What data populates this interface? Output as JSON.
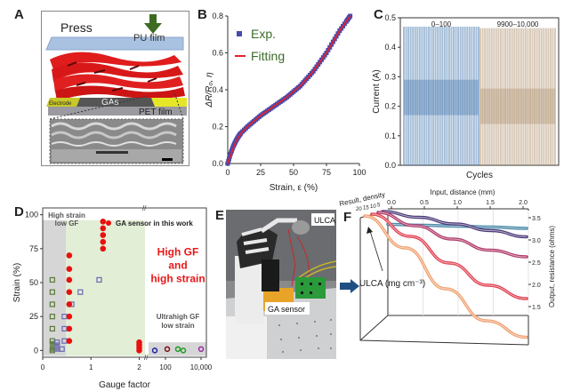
{
  "figure": {
    "panels": {
      "A": {
        "letter": "A",
        "labels": {
          "press": "Press",
          "pu_film": "PU film",
          "electrode": "Electrode",
          "gas": "GAs",
          "pet_film": "PET film"
        }
      },
      "B": {
        "letter": "B"
      },
      "C": {
        "letter": "C"
      },
      "D": {
        "letter": "D"
      },
      "E": {
        "letter": "E",
        "labels": {
          "ulca": "ULCA",
          "ga_sensor": "GA sensor"
        }
      },
      "F": {
        "letter": "F"
      }
    },
    "colors": {
      "exp_marker": "#4a4aa8",
      "fitting_line": "#e8202a",
      "legend_text": "#3d6b2a",
      "cycle_blue": "#3a6fa8",
      "cycle_brown": "#a88a64",
      "ga_red": "#e81010",
      "high_gf_text": "#e81818",
      "green_region": "#e2eed6",
      "gray_region": "#d6d6d6",
      "arrow": "#1f4f82",
      "press_arrow": "#3d6b22"
    }
  },
  "chart_data": [
    {
      "panel": "B",
      "type": "line",
      "title": "",
      "xlabel": "Strain, ε (%)",
      "ylabel": "ΔR/R₀, η",
      "xlim": [
        0,
        100
      ],
      "ylim": [
        0,
        0.8
      ],
      "xticks": [
        "0",
        "25",
        "50",
        "75",
        "100"
      ],
      "yticks": [
        "0.0",
        "0.2",
        "0.4",
        "0.6",
        "0.8"
      ],
      "legend": [
        "Exp.",
        "Fitting"
      ],
      "legend_position": "top-left",
      "series": [
        {
          "name": "Exp.",
          "style": "markers",
          "x": [
            0,
            2,
            4,
            6,
            8,
            10,
            15,
            20,
            25,
            30,
            35,
            40,
            45,
            50,
            55,
            60,
            65,
            70,
            75,
            80,
            85,
            90,
            93
          ],
          "y": [
            0.0,
            0.05,
            0.09,
            0.12,
            0.145,
            0.165,
            0.2,
            0.23,
            0.26,
            0.285,
            0.31,
            0.335,
            0.36,
            0.39,
            0.42,
            0.46,
            0.5,
            0.55,
            0.6,
            0.66,
            0.72,
            0.77,
            0.8
          ]
        },
        {
          "name": "Fitting",
          "style": "line",
          "x": [
            0,
            2,
            4,
            6,
            8,
            10,
            15,
            20,
            25,
            30,
            35,
            40,
            45,
            50,
            55,
            60,
            65,
            70,
            75,
            80,
            85,
            90,
            93
          ],
          "y": [
            0.0,
            0.04,
            0.08,
            0.115,
            0.14,
            0.162,
            0.2,
            0.23,
            0.26,
            0.285,
            0.31,
            0.335,
            0.36,
            0.39,
            0.42,
            0.46,
            0.5,
            0.55,
            0.6,
            0.66,
            0.72,
            0.77,
            0.8
          ]
        }
      ]
    },
    {
      "panel": "C",
      "type": "line",
      "title": "",
      "xlabel": "Cycles",
      "ylabel": "Current (A)",
      "ylim": [
        0,
        0.5
      ],
      "yticks": [
        "0.0",
        "0.1",
        "0.2",
        "0.3",
        "0.4",
        "0.5"
      ],
      "series": [
        {
          "name": "0–100",
          "min": 0.0,
          "max": 0.47,
          "center": 0.23
        },
        {
          "name": "9900–10,000",
          "min": 0.0,
          "max": 0.465,
          "center": 0.2
        }
      ]
    },
    {
      "panel": "D",
      "type": "scatter",
      "title": "",
      "xlabel": "Gauge factor",
      "ylabel": "Strain (%)",
      "xticks": [
        "0",
        "1",
        "2",
        "100",
        "10,000"
      ],
      "yticks": [
        "0",
        "25",
        "50",
        "75",
        "100"
      ],
      "ylim": [
        -5,
        105
      ],
      "legend": [
        "GA sensor in this work"
      ],
      "legend_position": "top-right",
      "annotations": [
        "High strain\nlow GF",
        "High GF\nand\nhigh strain",
        "Ultrahigh GF\nlow strain"
      ],
      "series": [
        {
          "name": "GA sensor in this work",
          "marker": "filled-circle",
          "points": [
            [
              0.55,
              7
            ],
            [
              0.55,
              16
            ],
            [
              0.55,
              25
            ],
            [
              0.55,
              34
            ],
            [
              0.55,
              43
            ],
            [
              0.55,
              52
            ],
            [
              0.55,
              60
            ],
            [
              0.55,
              70
            ],
            [
              1.25,
              75
            ],
            [
              1.25,
              80
            ],
            [
              1.25,
              85
            ],
            [
              1.25,
              90
            ],
            [
              1.25,
              95
            ],
            [
              2.0,
              0
            ],
            [
              2.0,
              2
            ],
            [
              2.0,
              4
            ],
            [
              2.0,
              6
            ]
          ]
        },
        {
          "name": "green-squares",
          "marker": "open-square",
          "points": [
            [
              0.2,
              7
            ],
            [
              0.2,
              16
            ],
            [
              0.2,
              25
            ],
            [
              0.2,
              34
            ],
            [
              0.2,
              43
            ],
            [
              0.2,
              52
            ],
            [
              0.2,
              0
            ]
          ]
        },
        {
          "name": "blue-squares",
          "marker": "open-square",
          "points": [
            [
              0.3,
              6
            ],
            [
              0.4,
              1
            ],
            [
              0.45,
              7
            ],
            [
              0.45,
              16
            ],
            [
              0.45,
              25
            ],
            [
              0.6,
              34
            ],
            [
              0.78,
              43
            ],
            [
              1.17,
              52
            ]
          ]
        },
        {
          "name": "ultrahigh",
          "marker": "open-circle",
          "points": [
            [
              "~30",
              0,
              "#1f1fa0"
            ],
            [
              "~50",
              1,
              "#7a1010"
            ],
            [
              "~80",
              1,
              "#1f9a1f"
            ],
            [
              "~100",
              0,
              "#1f9a1f"
            ],
            [
              "~8000",
              1,
              "#9a2aa0"
            ]
          ]
        }
      ]
    },
    {
      "panel": "F",
      "type": "line",
      "title": "",
      "xlabel": "Input, distance (mm)",
      "ylabel": "Output, resistance (ohms)",
      "zlabel": "Result, density",
      "xticks": [
        "0.0",
        "0.5",
        "1.0",
        "1.5",
        "2.0"
      ],
      "yticks": [
        "1.5",
        "2.0",
        "2.5",
        "3.0",
        "3.5"
      ],
      "zticks": [
        "20",
        "15",
        "10",
        "5"
      ],
      "annotation": "ULCA (mg cm⁻³)",
      "series": [
        {
          "name": "5",
          "color": "#4a8aa8",
          "x": [
            0,
            0.5,
            1.0,
            1.5,
            2.0
          ],
          "y": [
            3.35,
            3.33,
            3.31,
            3.29,
            3.26
          ]
        },
        {
          "name": "10",
          "color": "#4a3a78",
          "x": [
            0,
            0.5,
            1.0,
            1.5,
            2.0
          ],
          "y": [
            3.35,
            3.22,
            3.07,
            2.92,
            2.78
          ]
        },
        {
          "name": "15",
          "color": "#b03a6a",
          "x": [
            0,
            0.5,
            1.0,
            1.5,
            2.0
          ],
          "y": [
            3.35,
            3.05,
            2.75,
            2.5,
            2.35
          ]
        },
        {
          "name": "20",
          "color": "#e04050",
          "x": [
            0,
            0.5,
            1.0,
            1.5,
            2.0
          ],
          "y": [
            3.35,
            2.85,
            2.25,
            1.75,
            1.45
          ]
        },
        {
          "name": "25",
          "color": "#f0a070",
          "x": [
            0,
            0.5,
            1.0,
            1.5,
            2.0
          ],
          "y": [
            3.3,
            2.7,
            1.9,
            1.3,
            1.05
          ]
        }
      ]
    }
  ]
}
